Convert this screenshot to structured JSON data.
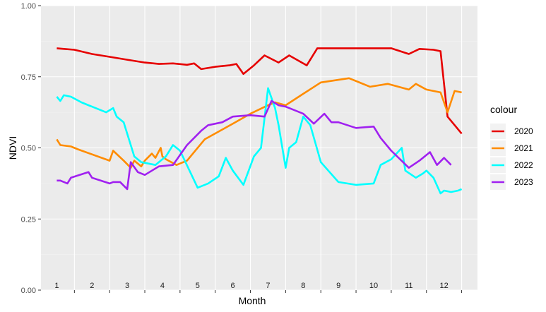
{
  "chart_data": {
    "type": "line",
    "title": "",
    "xlabel": "Month",
    "ylabel": "NDVI",
    "xlim": [
      1,
      12.5
    ],
    "ylim": [
      0,
      1
    ],
    "yticks": [
      0.0,
      0.25,
      0.5,
      0.75,
      1.0
    ],
    "ytick_labels": [
      "0.00",
      "0.25",
      "0.50",
      "0.75",
      "1.00"
    ],
    "month_labels": [
      "1",
      "2",
      "3",
      "4",
      "5",
      "6",
      "7",
      "8",
      "9",
      "10",
      "11",
      "12"
    ],
    "grid": true,
    "legend": {
      "title": "colour",
      "position": "right"
    },
    "series": [
      {
        "name": "2020",
        "color": "#e60000",
        "x": [
          1.0,
          1.2,
          1.5,
          2.0,
          2.5,
          3.0,
          3.5,
          3.9,
          4.3,
          4.7,
          4.9,
          5.1,
          5.5,
          5.9,
          6.1,
          6.3,
          6.6,
          6.9,
          7.3,
          7.6,
          8.1,
          8.4,
          9.0,
          9.7,
          10.5,
          11.0,
          11.3,
          11.7,
          11.9,
          12.1,
          12.5
        ],
        "y": [
          0.85,
          0.848,
          0.845,
          0.83,
          0.82,
          0.81,
          0.8,
          0.795,
          0.797,
          0.792,
          0.797,
          0.777,
          0.785,
          0.79,
          0.795,
          0.76,
          0.79,
          0.825,
          0.8,
          0.825,
          0.79,
          0.85,
          0.85,
          0.85,
          0.85,
          0.83,
          0.848,
          0.845,
          0.84,
          0.61,
          0.55
        ]
      },
      {
        "name": "2021",
        "color": "#ff8c00",
        "x": [
          1.0,
          1.1,
          1.4,
          1.6,
          2.5,
          2.6,
          2.9,
          3.1,
          3.2,
          3.4,
          3.5,
          3.7,
          3.8,
          3.95,
          4.0,
          4.1,
          4.4,
          4.7,
          5.2,
          6.0,
          6.5,
          7.0,
          7.2,
          7.5,
          8.0,
          8.5,
          9.3,
          9.9,
          10.4,
          11.0,
          11.2,
          11.5,
          11.9,
          12.1,
          12.3,
          12.5
        ],
        "y": [
          0.53,
          0.51,
          0.505,
          0.495,
          0.455,
          0.49,
          0.455,
          0.43,
          0.455,
          0.435,
          0.455,
          0.48,
          0.465,
          0.5,
          0.47,
          0.46,
          0.44,
          0.455,
          0.53,
          0.585,
          0.62,
          0.65,
          0.66,
          0.65,
          0.69,
          0.73,
          0.745,
          0.715,
          0.725,
          0.705,
          0.725,
          0.705,
          0.695,
          0.625,
          0.7,
          0.695
        ]
      },
      {
        "name": "2022",
        "color": "#00ffff",
        "x": [
          1.0,
          1.1,
          1.2,
          1.4,
          1.7,
          2.0,
          2.1,
          2.4,
          2.6,
          2.7,
          2.9,
          3.2,
          3.4,
          3.6,
          3.8,
          4.0,
          4.1,
          4.3,
          4.5,
          5.0,
          5.3,
          5.6,
          5.8,
          6.0,
          6.3,
          6.6,
          6.8,
          7.0,
          7.2,
          7.3,
          7.5,
          7.6,
          7.7,
          7.8,
          8.0,
          8.2,
          8.5,
          9.0,
          9.5,
          10.0,
          10.2,
          10.5,
          10.8,
          10.9,
          11.2,
          11.4,
          11.5,
          11.7,
          11.9,
          12.0,
          12.2,
          12.4,
          12.5
        ],
        "y": [
          0.68,
          0.665,
          0.685,
          0.68,
          0.66,
          0.645,
          0.64,
          0.625,
          0.64,
          0.61,
          0.59,
          0.47,
          0.45,
          0.445,
          0.44,
          0.46,
          0.47,
          0.51,
          0.49,
          0.36,
          0.375,
          0.4,
          0.465,
          0.42,
          0.37,
          0.47,
          0.5,
          0.71,
          0.64,
          0.58,
          0.43,
          0.5,
          0.51,
          0.52,
          0.61,
          0.58,
          0.45,
          0.38,
          0.37,
          0.375,
          0.44,
          0.46,
          0.5,
          0.42,
          0.395,
          0.41,
          0.42,
          0.395,
          0.34,
          0.35,
          0.345,
          0.35,
          0.355
        ]
      },
      {
        "name": "2023",
        "color": "#a020f0",
        "x": [
          1.0,
          1.1,
          1.3,
          1.4,
          1.9,
          2.0,
          2.5,
          2.6,
          2.8,
          3.0,
          3.1,
          3.3,
          3.5,
          3.9,
          4.3,
          4.7,
          5.1,
          5.3,
          5.7,
          6.0,
          6.5,
          6.9,
          7.1,
          7.3,
          7.5,
          8.0,
          8.3,
          8.6,
          8.8,
          9.0,
          9.5,
          10.0,
          10.2,
          10.5,
          11.0,
          11.3,
          11.6,
          11.8,
          12.0,
          12.2
        ],
        "y": [
          0.385,
          0.385,
          0.375,
          0.395,
          0.415,
          0.395,
          0.375,
          0.38,
          0.38,
          0.355,
          0.45,
          0.415,
          0.405,
          0.435,
          0.44,
          0.51,
          0.56,
          0.58,
          0.59,
          0.61,
          0.615,
          0.61,
          0.665,
          0.65,
          0.645,
          0.62,
          0.585,
          0.62,
          0.59,
          0.59,
          0.57,
          0.575,
          0.535,
          0.49,
          0.43,
          0.455,
          0.485,
          0.44,
          0.465,
          0.44
        ]
      }
    ]
  }
}
